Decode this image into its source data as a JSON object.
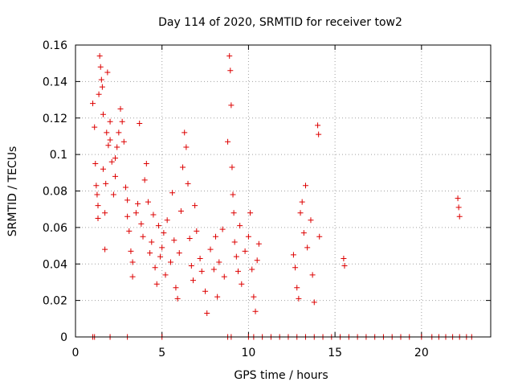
{
  "chart_data": {
    "type": "scatter",
    "title": "Day 114 of 2020, SRMTID for receiver tow2",
    "xlabel": "GPS time / hours",
    "ylabel": "SRMTID / TECUs",
    "xlim": [
      0,
      24
    ],
    "ylim": [
      0,
      0.16
    ],
    "xticks": [
      0,
      5,
      10,
      15,
      20
    ],
    "xtick_labels": [
      "0",
      "5",
      "10",
      "15",
      "20"
    ],
    "yticks": [
      0,
      0.02,
      0.04,
      0.06,
      0.08,
      0.1,
      0.12,
      0.14,
      0.16
    ],
    "ytick_labels": [
      "0",
      "0.02",
      "0.04",
      "0.06",
      "0.08",
      "0.1",
      "0.12",
      "0.14",
      "0.16"
    ],
    "grid": true,
    "marker": "+",
    "color": "#dd0000",
    "series": [
      {
        "name": "SRMTID",
        "points": [
          [
            1.0,
            0.128
          ],
          [
            1.1,
            0.115
          ],
          [
            1.15,
            0.095
          ],
          [
            1.2,
            0.083
          ],
          [
            1.25,
            0.078
          ],
          [
            1.3,
            0.065
          ],
          [
            1.3,
            0.072
          ],
          [
            1.35,
            0.133
          ],
          [
            1.4,
            0.154
          ],
          [
            1.45,
            0.148
          ],
          [
            1.5,
            0.141
          ],
          [
            1.55,
            0.137
          ],
          [
            1.6,
            0.122
          ],
          [
            1.6,
            0.092
          ],
          [
            1.7,
            0.068
          ],
          [
            1.7,
            0.048
          ],
          [
            1.75,
            0.084
          ],
          [
            1.8,
            0.112
          ],
          [
            1.85,
            0.145
          ],
          [
            1.9,
            0.105
          ],
          [
            2.0,
            0.118
          ],
          [
            2.0,
            0.108
          ],
          [
            2.1,
            0.096
          ],
          [
            2.2,
            0.078
          ],
          [
            2.3,
            0.088
          ],
          [
            2.3,
            0.098
          ],
          [
            2.4,
            0.104
          ],
          [
            2.5,
            0.112
          ],
          [
            2.6,
            0.125
          ],
          [
            2.7,
            0.118
          ],
          [
            2.8,
            0.107
          ],
          [
            2.9,
            0.082
          ],
          [
            3.0,
            0.075
          ],
          [
            3.0,
            0.066
          ],
          [
            3.1,
            0.058
          ],
          [
            3.2,
            0.047
          ],
          [
            3.3,
            0.041
          ],
          [
            3.3,
            0.033
          ],
          [
            3.5,
            0.068
          ],
          [
            3.6,
            0.073
          ],
          [
            3.7,
            0.117
          ],
          [
            3.8,
            0.062
          ],
          [
            3.9,
            0.055
          ],
          [
            4.0,
            0.086
          ],
          [
            4.1,
            0.095
          ],
          [
            4.2,
            0.074
          ],
          [
            4.3,
            0.046
          ],
          [
            4.4,
            0.052
          ],
          [
            4.5,
            0.067
          ],
          [
            4.6,
            0.038
          ],
          [
            4.7,
            0.029
          ],
          [
            4.8,
            0.061
          ],
          [
            4.9,
            0.044
          ],
          [
            5.0,
            0.049
          ],
          [
            5.1,
            0.057
          ],
          [
            5.2,
            0.034
          ],
          [
            5.3,
            0.064
          ],
          [
            5.5,
            0.041
          ],
          [
            5.6,
            0.079
          ],
          [
            5.7,
            0.053
          ],
          [
            5.8,
            0.027
          ],
          [
            5.9,
            0.021
          ],
          [
            6.0,
            0.046
          ],
          [
            6.1,
            0.069
          ],
          [
            6.2,
            0.093
          ],
          [
            6.3,
            0.112
          ],
          [
            6.4,
            0.104
          ],
          [
            6.5,
            0.084
          ],
          [
            6.6,
            0.054
          ],
          [
            6.7,
            0.039
          ],
          [
            6.8,
            0.031
          ],
          [
            6.9,
            0.072
          ],
          [
            7.0,
            0.058
          ],
          [
            7.2,
            0.043
          ],
          [
            7.3,
            0.036
          ],
          [
            7.5,
            0.025
          ],
          [
            7.6,
            0.013
          ],
          [
            7.8,
            0.048
          ],
          [
            8.0,
            0.037
          ],
          [
            8.1,
            0.055
          ],
          [
            8.2,
            0.022
          ],
          [
            8.3,
            0.041
          ],
          [
            8.5,
            0.059
          ],
          [
            8.6,
            0.033
          ],
          [
            8.8,
            0.107
          ],
          [
            8.9,
            0.154
          ],
          [
            8.95,
            0.146
          ],
          [
            9.0,
            0.127
          ],
          [
            9.05,
            0.093
          ],
          [
            9.1,
            0.078
          ],
          [
            9.15,
            0.068
          ],
          [
            9.2,
            0.052
          ],
          [
            9.3,
            0.044
          ],
          [
            9.4,
            0.036
          ],
          [
            9.5,
            0.061
          ],
          [
            9.6,
            0.029
          ],
          [
            9.8,
            0.047
          ],
          [
            10.0,
            0.055
          ],
          [
            10.1,
            0.068
          ],
          [
            10.2,
            0.037
          ],
          [
            10.3,
            0.022
          ],
          [
            10.4,
            0.014
          ],
          [
            10.5,
            0.042
          ],
          [
            10.6,
            0.051
          ],
          [
            12.6,
            0.045
          ],
          [
            12.7,
            0.038
          ],
          [
            12.8,
            0.027
          ],
          [
            12.9,
            0.021
          ],
          [
            13.0,
            0.068
          ],
          [
            13.1,
            0.074
          ],
          [
            13.2,
            0.057
          ],
          [
            13.3,
            0.083
          ],
          [
            13.4,
            0.049
          ],
          [
            13.6,
            0.064
          ],
          [
            13.7,
            0.034
          ],
          [
            13.8,
            0.019
          ],
          [
            14.0,
            0.116
          ],
          [
            14.05,
            0.111
          ],
          [
            14.1,
            0.055
          ],
          [
            15.5,
            0.043
          ],
          [
            15.55,
            0.039
          ],
          [
            22.1,
            0.076
          ],
          [
            22.15,
            0.071
          ],
          [
            22.2,
            0.066
          ],
          [
            1.0,
            0
          ],
          [
            1.1,
            0
          ],
          [
            2.0,
            0
          ],
          [
            3.0,
            0
          ],
          [
            5.0,
            0
          ],
          [
            8.8,
            0
          ],
          [
            9.0,
            0
          ],
          [
            10.0,
            0
          ],
          [
            10.3,
            0
          ],
          [
            10.8,
            0
          ],
          [
            11.3,
            0
          ],
          [
            11.8,
            0
          ],
          [
            12.3,
            0
          ],
          [
            12.8,
            0
          ],
          [
            13.3,
            0
          ],
          [
            13.8,
            0
          ],
          [
            14.3,
            0
          ],
          [
            14.8,
            0
          ],
          [
            15.3,
            0
          ],
          [
            15.8,
            0
          ],
          [
            16.3,
            0
          ],
          [
            16.8,
            0
          ],
          [
            17.3,
            0
          ],
          [
            17.8,
            0
          ],
          [
            18.3,
            0
          ],
          [
            18.8,
            0
          ],
          [
            19.3,
            0
          ],
          [
            20.0,
            0
          ],
          [
            20.6,
            0
          ],
          [
            21.0,
            0
          ],
          [
            21.4,
            0
          ],
          [
            21.8,
            0
          ],
          [
            22.2,
            0
          ],
          [
            22.6,
            0
          ],
          [
            22.9,
            0
          ]
        ]
      }
    ]
  }
}
